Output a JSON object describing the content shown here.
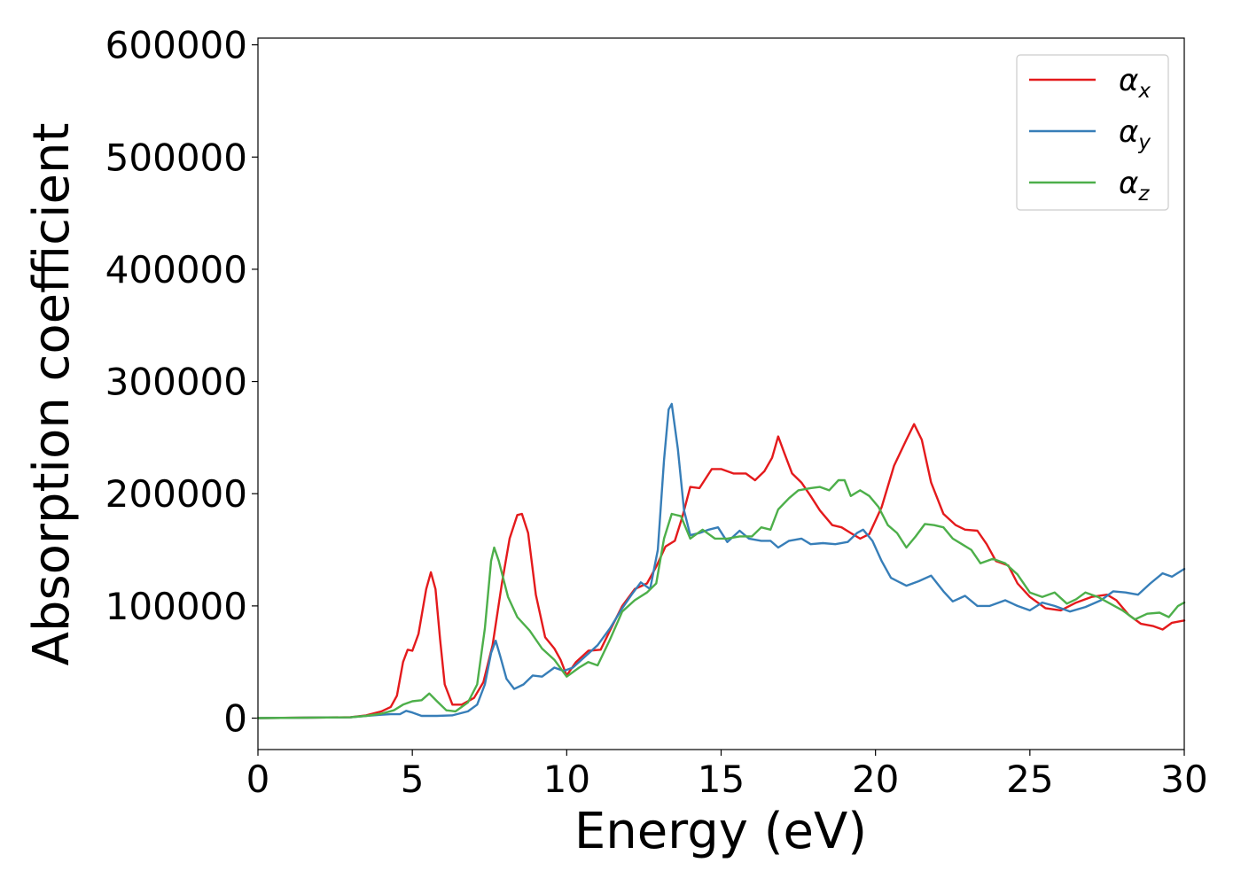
{
  "chart_data": {
    "type": "line",
    "xlabel": "Energy (eV)",
    "ylabel": "Absorption coefficient",
    "xlim": [
      0,
      30
    ],
    "ylim": [
      -28000,
      606000
    ],
    "xticks": [
      0,
      5,
      10,
      15,
      20,
      25,
      30
    ],
    "xtick_labels": [
      "0",
      "5",
      "10",
      "15",
      "20",
      "25",
      "30"
    ],
    "yticks": [
      0,
      100000,
      200000,
      300000,
      400000,
      500000,
      600000
    ],
    "ytick_labels": [
      "0",
      "100000",
      "200000",
      "300000",
      "400000",
      "500000",
      "600000"
    ],
    "grid": false,
    "legend_position": "top-right",
    "series": [
      {
        "name": "α_x",
        "name_main": "α",
        "name_sub": "x",
        "color": "#e41a1c",
        "points": [
          [
            0,
            0
          ],
          [
            3,
            800
          ],
          [
            3.5,
            2500
          ],
          [
            4,
            6000
          ],
          [
            4.3,
            10000
          ],
          [
            4.5,
            20000
          ],
          [
            4.7,
            50000
          ],
          [
            4.85,
            61000
          ],
          [
            5.0,
            60000
          ],
          [
            5.2,
            75000
          ],
          [
            5.45,
            115000
          ],
          [
            5.6,
            130000
          ],
          [
            5.75,
            115000
          ],
          [
            5.9,
            70000
          ],
          [
            6.05,
            30000
          ],
          [
            6.3,
            12000
          ],
          [
            6.6,
            12000
          ],
          [
            7.0,
            18000
          ],
          [
            7.3,
            32000
          ],
          [
            7.6,
            65000
          ],
          [
            7.9,
            120000
          ],
          [
            8.15,
            160000
          ],
          [
            8.4,
            181000
          ],
          [
            8.55,
            182000
          ],
          [
            8.75,
            165000
          ],
          [
            9.0,
            110000
          ],
          [
            9.3,
            72000
          ],
          [
            9.6,
            62000
          ],
          [
            9.8,
            52000
          ],
          [
            10.0,
            38000
          ],
          [
            10.3,
            50000
          ],
          [
            10.7,
            60000
          ],
          [
            11.1,
            61000
          ],
          [
            11.4,
            78000
          ],
          [
            11.8,
            100000
          ],
          [
            12.2,
            115000
          ],
          [
            12.6,
            120000
          ],
          [
            12.9,
            135000
          ],
          [
            13.2,
            153000
          ],
          [
            13.5,
            158000
          ],
          [
            13.75,
            180000
          ],
          [
            14.0,
            206000
          ],
          [
            14.3,
            205000
          ],
          [
            14.7,
            222000
          ],
          [
            15.0,
            222000
          ],
          [
            15.4,
            218000
          ],
          [
            15.8,
            218000
          ],
          [
            16.1,
            212000
          ],
          [
            16.4,
            220000
          ],
          [
            16.65,
            232000
          ],
          [
            16.85,
            251000
          ],
          [
            17.05,
            236000
          ],
          [
            17.3,
            218000
          ],
          [
            17.6,
            210000
          ],
          [
            17.9,
            198000
          ],
          [
            18.2,
            185000
          ],
          [
            18.6,
            172000
          ],
          [
            18.9,
            170000
          ],
          [
            19.2,
            165000
          ],
          [
            19.5,
            160000
          ],
          [
            19.8,
            164000
          ],
          [
            20.2,
            188000
          ],
          [
            20.6,
            225000
          ],
          [
            21.0,
            248000
          ],
          [
            21.25,
            262000
          ],
          [
            21.5,
            248000
          ],
          [
            21.8,
            210000
          ],
          [
            22.2,
            182000
          ],
          [
            22.6,
            172000
          ],
          [
            22.9,
            168000
          ],
          [
            23.3,
            167000
          ],
          [
            23.6,
            155000
          ],
          [
            23.9,
            140000
          ],
          [
            24.3,
            136000
          ],
          [
            24.6,
            120000
          ],
          [
            25.0,
            108000
          ],
          [
            25.5,
            98000
          ],
          [
            26.0,
            96000
          ],
          [
            26.5,
            103000
          ],
          [
            27.0,
            108000
          ],
          [
            27.5,
            110000
          ],
          [
            27.8,
            105000
          ],
          [
            28.2,
            92000
          ],
          [
            28.6,
            84000
          ],
          [
            29.0,
            82000
          ],
          [
            29.3,
            79000
          ],
          [
            29.6,
            85000
          ],
          [
            30.0,
            87000
          ]
        ]
      },
      {
        "name": "α_y",
        "name_main": "α",
        "name_sub": "y",
        "color": "#377eb8",
        "points": [
          [
            0,
            0
          ],
          [
            3,
            700
          ],
          [
            3.5,
            2000
          ],
          [
            4,
            3000
          ],
          [
            4.3,
            3500
          ],
          [
            4.6,
            3500
          ],
          [
            4.8,
            6500
          ],
          [
            5.0,
            5000
          ],
          [
            5.3,
            2000
          ],
          [
            5.8,
            2000
          ],
          [
            6.3,
            2500
          ],
          [
            6.8,
            6000
          ],
          [
            7.1,
            12000
          ],
          [
            7.35,
            30000
          ],
          [
            7.55,
            58000
          ],
          [
            7.7,
            69000
          ],
          [
            7.85,
            55000
          ],
          [
            8.05,
            35000
          ],
          [
            8.3,
            26000
          ],
          [
            8.6,
            30000
          ],
          [
            8.9,
            38000
          ],
          [
            9.2,
            37000
          ],
          [
            9.6,
            45000
          ],
          [
            9.9,
            42000
          ],
          [
            10.2,
            45000
          ],
          [
            10.6,
            55000
          ],
          [
            11.0,
            65000
          ],
          [
            11.4,
            80000
          ],
          [
            11.8,
            98000
          ],
          [
            12.1,
            110000
          ],
          [
            12.4,
            121000
          ],
          [
            12.7,
            115000
          ],
          [
            12.95,
            150000
          ],
          [
            13.15,
            230000
          ],
          [
            13.3,
            275000
          ],
          [
            13.4,
            280000
          ],
          [
            13.6,
            240000
          ],
          [
            13.8,
            185000
          ],
          [
            14.0,
            163000
          ],
          [
            14.3,
            165000
          ],
          [
            14.6,
            168000
          ],
          [
            14.9,
            170000
          ],
          [
            15.2,
            157000
          ],
          [
            15.6,
            167000
          ],
          [
            15.9,
            160000
          ],
          [
            16.3,
            158000
          ],
          [
            16.6,
            158000
          ],
          [
            16.85,
            152000
          ],
          [
            17.2,
            158000
          ],
          [
            17.6,
            160000
          ],
          [
            17.9,
            155000
          ],
          [
            18.3,
            156000
          ],
          [
            18.7,
            155000
          ],
          [
            19.1,
            157000
          ],
          [
            19.4,
            165000
          ],
          [
            19.6,
            168000
          ],
          [
            19.9,
            158000
          ],
          [
            20.2,
            140000
          ],
          [
            20.5,
            125000
          ],
          [
            21.0,
            118000
          ],
          [
            21.4,
            122000
          ],
          [
            21.8,
            127000
          ],
          [
            22.2,
            113000
          ],
          [
            22.5,
            104000
          ],
          [
            22.9,
            109000
          ],
          [
            23.3,
            100000
          ],
          [
            23.7,
            100000
          ],
          [
            24.2,
            105000
          ],
          [
            24.6,
            100000
          ],
          [
            25.0,
            96000
          ],
          [
            25.4,
            103000
          ],
          [
            25.8,
            100000
          ],
          [
            26.3,
            95000
          ],
          [
            26.8,
            99000
          ],
          [
            27.3,
            105000
          ],
          [
            27.7,
            113000
          ],
          [
            28.1,
            112000
          ],
          [
            28.5,
            110000
          ],
          [
            28.9,
            120000
          ],
          [
            29.3,
            129000
          ],
          [
            29.6,
            126000
          ],
          [
            30.0,
            133000
          ]
        ]
      },
      {
        "name": "α_z",
        "name_main": "α",
        "name_sub": "z",
        "color": "#4daf4a",
        "points": [
          [
            0,
            0
          ],
          [
            3,
            700
          ],
          [
            3.5,
            2000
          ],
          [
            4,
            4000
          ],
          [
            4.4,
            7000
          ],
          [
            4.7,
            12000
          ],
          [
            5.0,
            15000
          ],
          [
            5.3,
            16000
          ],
          [
            5.55,
            22000
          ],
          [
            5.8,
            15000
          ],
          [
            6.1,
            7000
          ],
          [
            6.4,
            6000
          ],
          [
            6.8,
            14000
          ],
          [
            7.1,
            30000
          ],
          [
            7.35,
            80000
          ],
          [
            7.55,
            140000
          ],
          [
            7.65,
            152000
          ],
          [
            7.8,
            140000
          ],
          [
            8.1,
            108000
          ],
          [
            8.4,
            90000
          ],
          [
            8.8,
            78000
          ],
          [
            9.2,
            62000
          ],
          [
            9.6,
            52000
          ],
          [
            10.0,
            37000
          ],
          [
            10.4,
            45000
          ],
          [
            10.7,
            50000
          ],
          [
            11.0,
            47000
          ],
          [
            11.4,
            70000
          ],
          [
            11.8,
            95000
          ],
          [
            12.2,
            105000
          ],
          [
            12.6,
            112000
          ],
          [
            12.9,
            120000
          ],
          [
            13.15,
            160000
          ],
          [
            13.4,
            182000
          ],
          [
            13.7,
            180000
          ],
          [
            14.0,
            160000
          ],
          [
            14.4,
            168000
          ],
          [
            14.8,
            160000
          ],
          [
            15.2,
            160000
          ],
          [
            15.6,
            162000
          ],
          [
            16.0,
            162000
          ],
          [
            16.3,
            170000
          ],
          [
            16.6,
            168000
          ],
          [
            16.85,
            186000
          ],
          [
            17.2,
            196000
          ],
          [
            17.5,
            203000
          ],
          [
            17.9,
            205000
          ],
          [
            18.2,
            206000
          ],
          [
            18.5,
            203000
          ],
          [
            18.8,
            212000
          ],
          [
            19.0,
            212000
          ],
          [
            19.2,
            198000
          ],
          [
            19.5,
            203000
          ],
          [
            19.8,
            198000
          ],
          [
            20.1,
            188000
          ],
          [
            20.4,
            172000
          ],
          [
            20.7,
            165000
          ],
          [
            21.0,
            152000
          ],
          [
            21.3,
            162000
          ],
          [
            21.6,
            173000
          ],
          [
            21.9,
            172000
          ],
          [
            22.2,
            170000
          ],
          [
            22.5,
            160000
          ],
          [
            22.8,
            155000
          ],
          [
            23.1,
            150000
          ],
          [
            23.4,
            138000
          ],
          [
            23.8,
            142000
          ],
          [
            24.2,
            138000
          ],
          [
            24.6,
            128000
          ],
          [
            25.0,
            112000
          ],
          [
            25.4,
            108000
          ],
          [
            25.8,
            112000
          ],
          [
            26.2,
            102000
          ],
          [
            26.5,
            106000
          ],
          [
            26.8,
            112000
          ],
          [
            27.2,
            108000
          ],
          [
            27.6,
            102000
          ],
          [
            28.0,
            96000
          ],
          [
            28.4,
            88000
          ],
          [
            28.8,
            93000
          ],
          [
            29.2,
            94000
          ],
          [
            29.5,
            90000
          ],
          [
            29.8,
            100000
          ],
          [
            30.0,
            103000
          ]
        ]
      }
    ]
  }
}
